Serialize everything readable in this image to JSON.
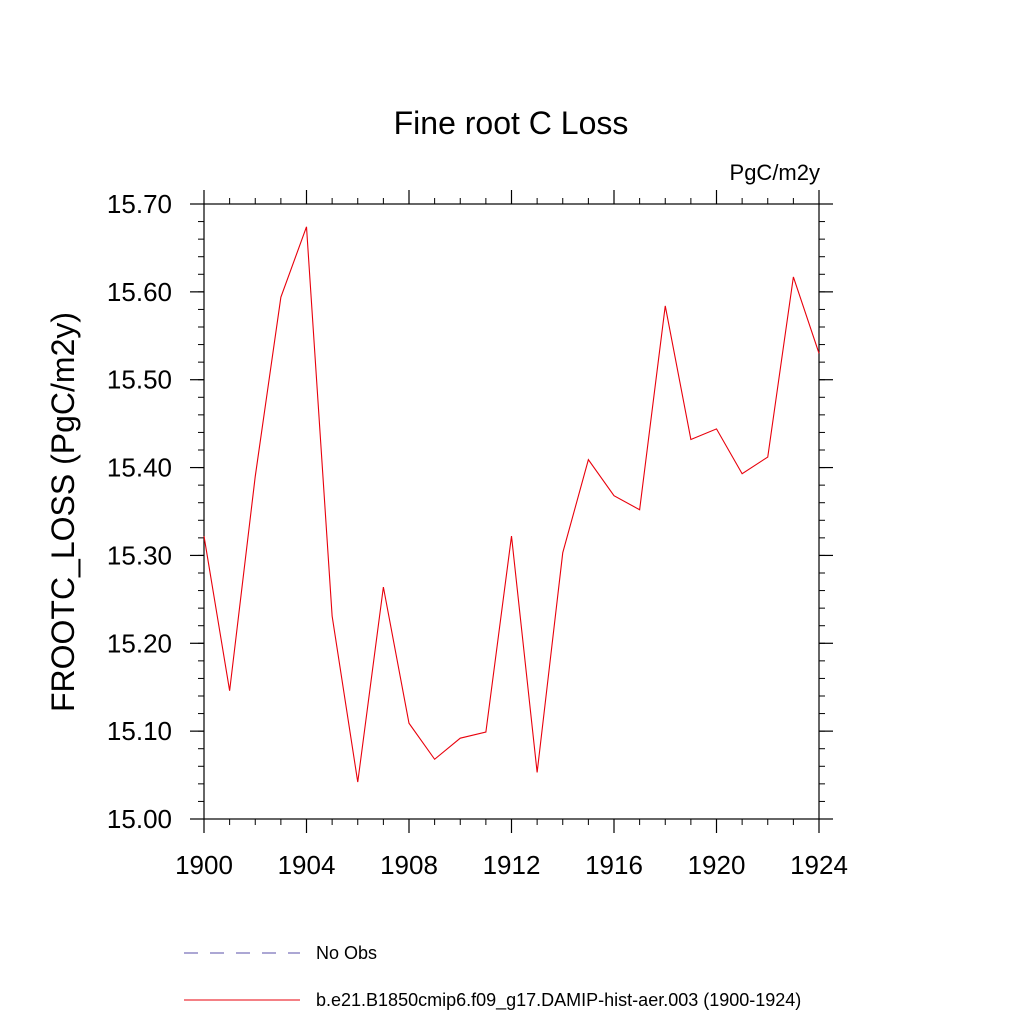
{
  "chart_data": {
    "type": "line",
    "title": "Fine root C Loss",
    "units": "PgC/m2y",
    "ylabel": "FROOTC_LOSS  (PgC/m2y)",
    "xlabel": "",
    "xlim": [
      1900,
      1924
    ],
    "ylim": [
      15.0,
      15.7
    ],
    "x_ticks": [
      1900,
      1904,
      1908,
      1912,
      1916,
      1920,
      1924
    ],
    "y_ticks": [
      15.0,
      15.1,
      15.2,
      15.3,
      15.4,
      15.5,
      15.6,
      15.7
    ],
    "y_tick_labels": [
      "15.00",
      "15.10",
      "15.20",
      "15.30",
      "15.40",
      "15.50",
      "15.60",
      "15.70"
    ],
    "grid": false,
    "legend_position": "bottom",
    "legend": [
      {
        "label": "No Obs",
        "color": "#5a4fa8",
        "style": "dashed"
      },
      {
        "label": "b.e21.B1850cmip6.f09_g17.DAMIP-hist-aer.003 (1900-1924)",
        "color": "#e8000b",
        "style": "solid"
      }
    ],
    "series": [
      {
        "name": "b.e21.B1850cmip6.f09_g17.DAMIP-hist-aer.003 (1900-1924)",
        "color": "#e8000b",
        "x": [
          1900,
          1901,
          1902,
          1903,
          1904,
          1905,
          1906,
          1907,
          1908,
          1909,
          1910,
          1911,
          1912,
          1913,
          1914,
          1915,
          1916,
          1917,
          1918,
          1919,
          1920,
          1921,
          1922,
          1923,
          1924
        ],
        "values": [
          15.322,
          15.146,
          15.39,
          15.594,
          15.674,
          15.231,
          15.042,
          15.264,
          15.109,
          15.068,
          15.092,
          15.099,
          15.322,
          15.053,
          15.303,
          15.409,
          15.368,
          15.352,
          15.584,
          15.432,
          15.444,
          15.393,
          15.412,
          15.617,
          15.53
        ]
      }
    ]
  }
}
